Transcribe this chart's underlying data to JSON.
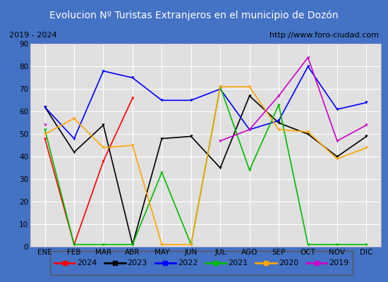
{
  "title": "Evolucion Nº Turistas Extranjeros en el municipio de Dozón",
  "subtitle_left": "2019 - 2024",
  "subtitle_right": "http://www.foro-ciudad.com",
  "months": [
    "ENE",
    "FEB",
    "MAR",
    "ABR",
    "MAY",
    "JUN",
    "JUL",
    "AGO",
    "SEP",
    "OCT",
    "NOV",
    "DIC"
  ],
  "ylim": [
    0,
    90
  ],
  "yticks": [
    0,
    10,
    20,
    30,
    40,
    50,
    60,
    70,
    80,
    90
  ],
  "series": {
    "2024": {
      "color": "#ff0000",
      "values": [
        48,
        1,
        38,
        66,
        null,
        null,
        null,
        null,
        null,
        null,
        null,
        null
      ]
    },
    "2023": {
      "color": "#000000",
      "values": [
        62,
        42,
        54,
        1,
        48,
        49,
        35,
        67,
        55,
        50,
        40,
        49
      ]
    },
    "2022": {
      "color": "#0000ff",
      "values": [
        62,
        48,
        78,
        75,
        65,
        65,
        70,
        52,
        56,
        80,
        61,
        64
      ]
    },
    "2021": {
      "color": "#00bb00",
      "values": [
        52,
        1,
        1,
        1,
        33,
        1,
        71,
        34,
        63,
        1,
        1,
        1
      ]
    },
    "2020": {
      "color": "#ffa500",
      "values": [
        50,
        57,
        44,
        45,
        1,
        1,
        71,
        71,
        52,
        51,
        39,
        44
      ]
    },
    "2019": {
      "color": "#cc00cc",
      "values": [
        54,
        null,
        null,
        null,
        null,
        null,
        47,
        52,
        67,
        84,
        47,
        54
      ]
    }
  },
  "title_bg_color": "#4472c4",
  "title_color": "#ffffff",
  "plot_bg_color": "#e0e0e0",
  "border_color": "#4472c4",
  "grid_color": "#ffffff",
  "white_bg": "#ffffff",
  "legend_order": [
    "2024",
    "2023",
    "2022",
    "2021",
    "2020",
    "2019"
  ]
}
